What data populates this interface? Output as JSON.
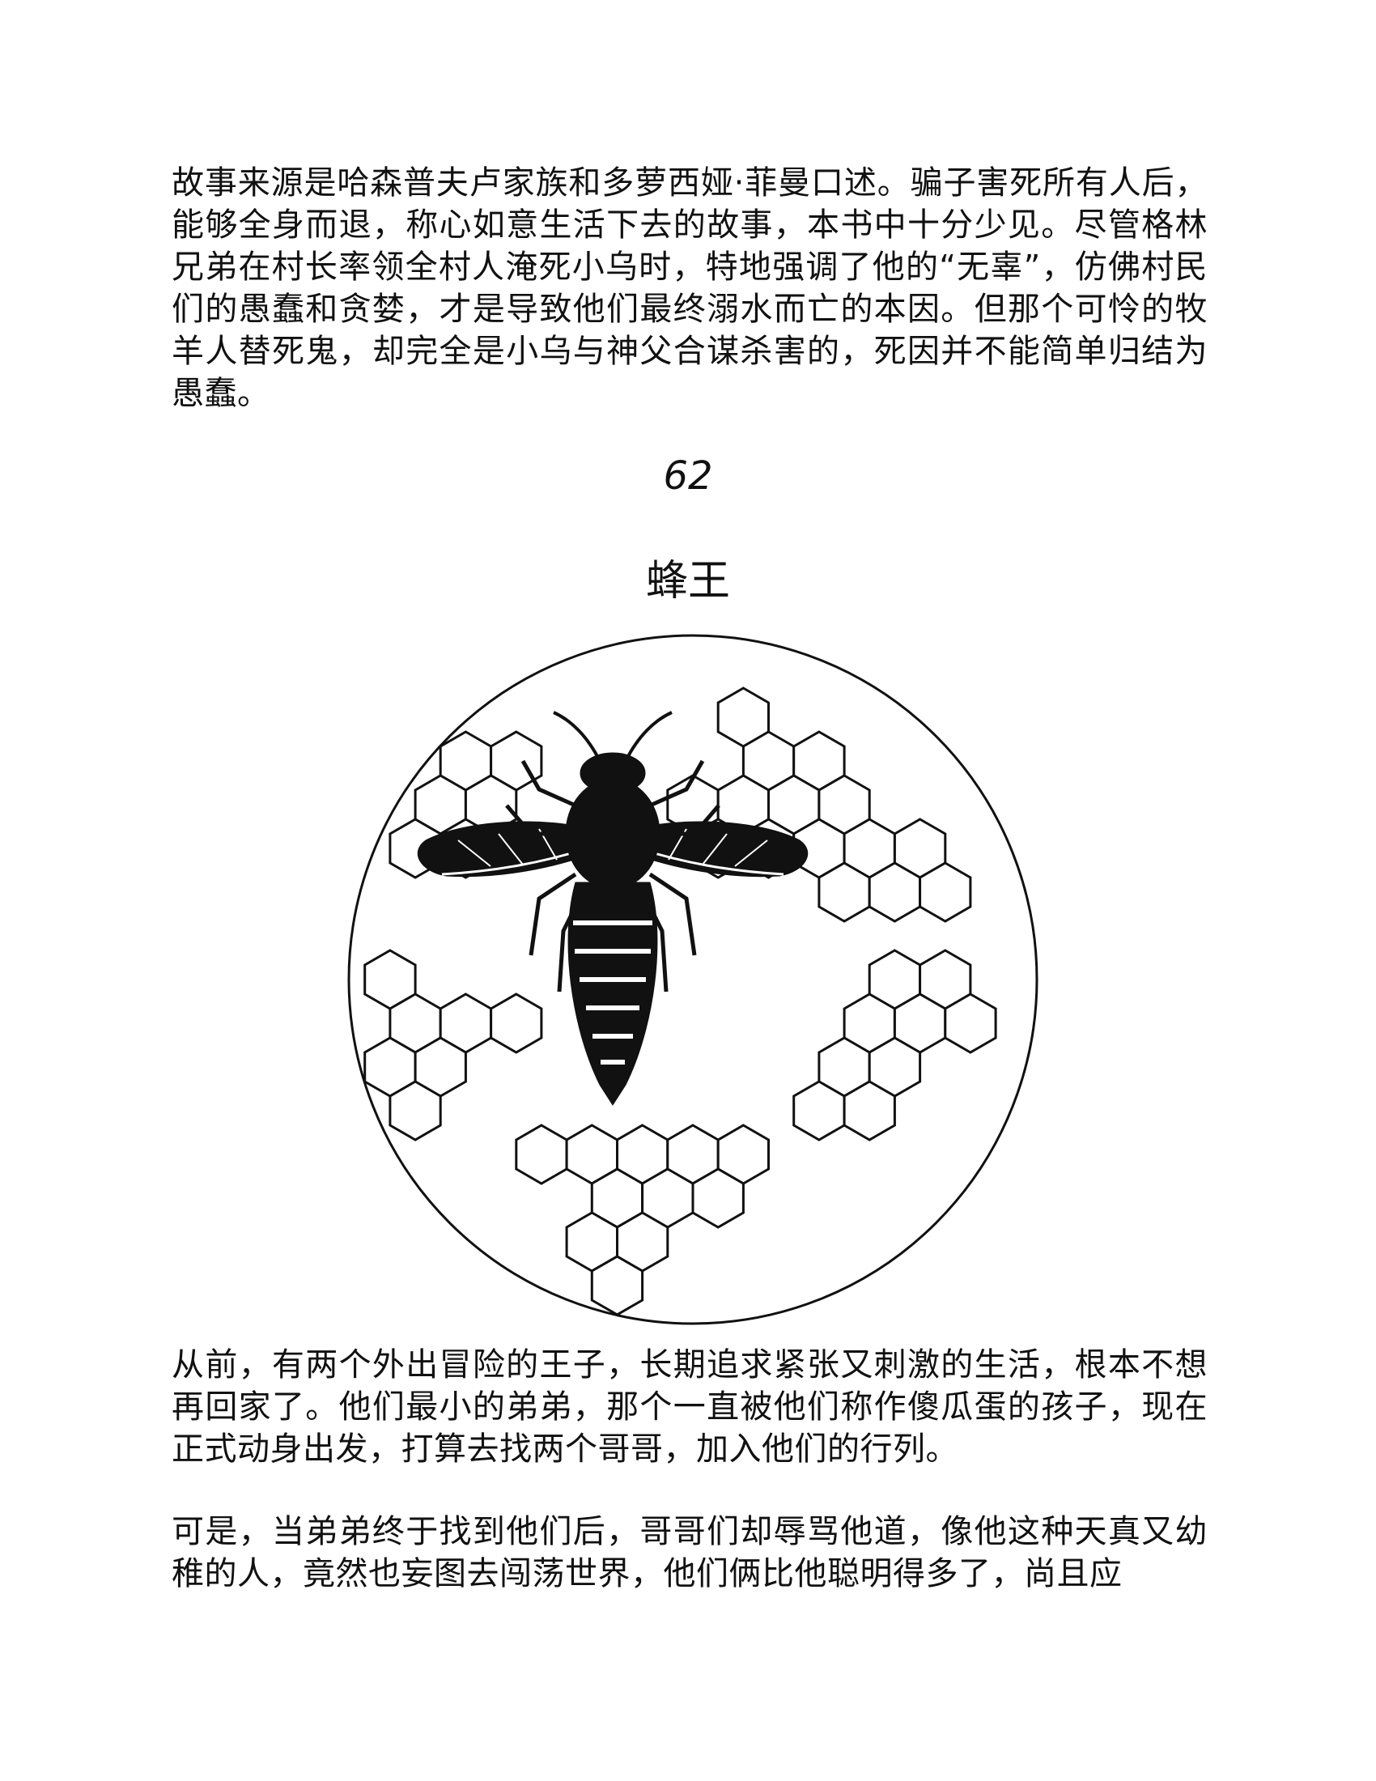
{
  "document": {
    "intro_paragraph": "故事来源是哈森普夫卢家族和多萝西娅·菲曼口述。骗子害死所有人后，能够全身而退，称心如意生活下去的故事，本书中十分少见。尽管格林兄弟在村长率领全村人淹死小乌时，特地强调了他的“无辜”，仿佛村民们的愚蠢和贪婪，才是导致他们最终溺水而亡的本因。但那个可怜的牧羊人替死鬼，却完全是小乌与神父合谋杀害的，死因并不能简单归结为愚蠢。",
    "chapter_number": "62",
    "chapter_title": "蜂王",
    "illustration": {
      "icon": "bee-on-honeycomb-icon",
      "ink_color": "#111111"
    },
    "story_paragraphs": [
      "从前，有两个外出冒险的王子，长期追求紧张又刺激的生活，根本不想再回家了。他们最小的弟弟，那个一直被他们称作傻瓜蛋的孩子，现在正式动身出发，打算去找两个哥哥，加入他们的行列。",
      "可是，当弟弟终于找到他们后，哥哥们却辱骂他道，像他这种天真又幼稚的人，竟然也妄图去闯荡世界，他们俩比他聪明得多了，尚且应"
    ]
  }
}
